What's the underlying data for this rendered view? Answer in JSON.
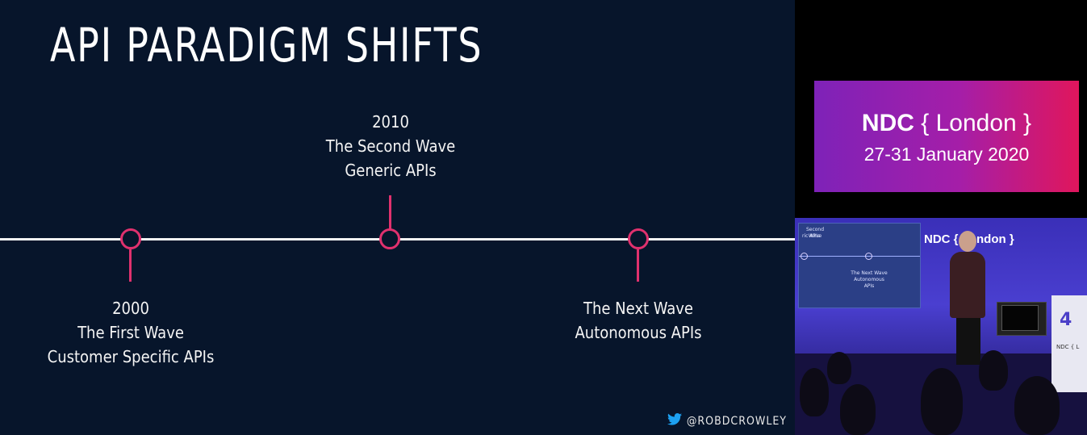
{
  "slide": {
    "title": "API PARADIGM SHIFTS",
    "milestones": [
      {
        "year": "2000",
        "wave": "The First Wave",
        "desc": "Customer Specific APIs"
      },
      {
        "year": "2010",
        "wave": "The Second Wave",
        "desc": "Generic APIs"
      },
      {
        "wave": "The Next Wave",
        "desc": "Autonomous APIs"
      }
    ],
    "twitter_handle": "@ROBDCROWLEY"
  },
  "conference": {
    "name": "NDC",
    "city_braced": "{ London }",
    "dates": "27-31 January 2020"
  },
  "video": {
    "screen_wave": "Second Wave",
    "screen_apis": "ric APIs",
    "screen_next": "The Next Wave",
    "screen_auto": "Autonomous APIs",
    "stage_logo": "NDC { London }",
    "podium_glyph": "4",
    "podium_text": "NDC { L"
  },
  "colors": {
    "slide_bg": "#07152b",
    "accent": "#e0316e",
    "gradient_start": "#7e22b8",
    "gradient_end": "#e0165c"
  },
  "icons": [
    "twitter-bird-icon"
  ]
}
